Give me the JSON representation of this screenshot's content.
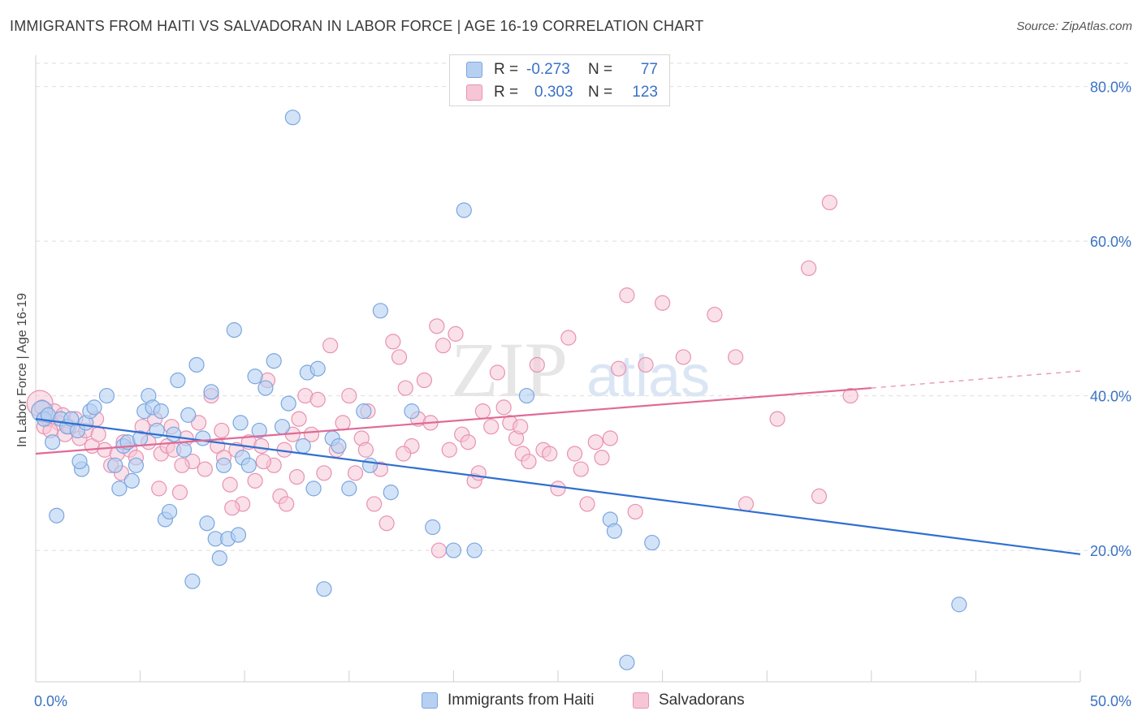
{
  "header": {
    "title": "IMMIGRANTS FROM HAITI VS SALVADORAN IN LABOR FORCE | AGE 16-19 CORRELATION CHART",
    "source": "Source: ZipAtlas.com"
  },
  "legend_top": {
    "rows": [
      {
        "r_label": "R =",
        "r_value": "-0.273",
        "n_label": "N =",
        "n_value": "77"
      },
      {
        "r_label": "R =",
        "r_value": "0.303",
        "n_label": "N =",
        "n_value": "123"
      }
    ]
  },
  "legend_bottom": {
    "items": [
      "Immigrants from Haiti",
      "Salvadorans"
    ]
  },
  "watermark": {
    "zip": "ZIP",
    "atlas": "atlas"
  },
  "colors": {
    "haiti_fill": "#b6d0f2",
    "haiti_stroke": "#7aa6e0",
    "haiti_line": "#2f6fd0",
    "salv_fill": "#f6c6d6",
    "salv_stroke": "#e892b0",
    "salv_line": "#e06a96",
    "tick_label": "#3a72c4",
    "grid": "#dedede"
  },
  "chart_data": {
    "type": "scatter",
    "title": "IMMIGRANTS FROM HAITI VS SALVADORAN IN LABOR FORCE | AGE 16-19 CORRELATION CHART",
    "xlabel": "",
    "ylabel": "In Labor Force | Age 16-19",
    "xlim": [
      0,
      50
    ],
    "ylim": [
      3,
      83
    ],
    "x_tick_labels": [
      {
        "value": 0,
        "label": "0.0%"
      },
      {
        "value": 50,
        "label": "50.0%"
      }
    ],
    "y_tick_labels": [
      {
        "value": 20,
        "label": "20.0%"
      },
      {
        "value": 40,
        "label": "40.0%"
      },
      {
        "value": 60,
        "label": "60.0%"
      },
      {
        "value": 80,
        "label": "80.0%"
      }
    ],
    "grid": true,
    "series": [
      {
        "name": "Immigrants from Haiti",
        "R": -0.273,
        "N": 77,
        "trend": {
          "x0": 0,
          "y0": 37.0,
          "x1": 50,
          "y1": 19.5
        },
        "points": [
          [
            0.3,
            38
          ],
          [
            0.4,
            37
          ],
          [
            0.6,
            37.5
          ],
          [
            0.8,
            34
          ],
          [
            1.0,
            24.5
          ],
          [
            1.2,
            37
          ],
          [
            1.5,
            36
          ],
          [
            1.7,
            37
          ],
          [
            2.0,
            35.5
          ],
          [
            2.2,
            30.5
          ],
          [
            2.4,
            36.5
          ],
          [
            2.6,
            38
          ],
          [
            2.8,
            38.5
          ],
          [
            3.4,
            40
          ],
          [
            3.8,
            31
          ],
          [
            4.0,
            28
          ],
          [
            4.2,
            33.5
          ],
          [
            4.4,
            34
          ],
          [
            4.6,
            29
          ],
          [
            4.8,
            31
          ],
          [
            5.2,
            38
          ],
          [
            5.4,
            40
          ],
          [
            5.6,
            38.5
          ],
          [
            5.8,
            35.5
          ],
          [
            6.0,
            38
          ],
          [
            6.2,
            24
          ],
          [
            6.4,
            25
          ],
          [
            6.6,
            35
          ],
          [
            6.8,
            42
          ],
          [
            7.1,
            33
          ],
          [
            7.3,
            37.5
          ],
          [
            7.5,
            16
          ],
          [
            7.7,
            44
          ],
          [
            8.0,
            34.5
          ],
          [
            8.2,
            23.5
          ],
          [
            8.4,
            40.5
          ],
          [
            8.6,
            21.5
          ],
          [
            8.8,
            19
          ],
          [
            9.0,
            31
          ],
          [
            9.2,
            21.5
          ],
          [
            9.5,
            48.5
          ],
          [
            9.7,
            22
          ],
          [
            9.9,
            32
          ],
          [
            10.2,
            31
          ],
          [
            10.5,
            42.5
          ],
          [
            10.7,
            35.5
          ],
          [
            11.0,
            41
          ],
          [
            11.4,
            44.5
          ],
          [
            11.8,
            36
          ],
          [
            12.1,
            39
          ],
          [
            12.3,
            76
          ],
          [
            12.8,
            33.5
          ],
          [
            13.0,
            43
          ],
          [
            13.3,
            28
          ],
          [
            13.5,
            43.5
          ],
          [
            13.8,
            15
          ],
          [
            14.2,
            34.5
          ],
          [
            14.5,
            33.5
          ],
          [
            15.0,
            28
          ],
          [
            15.7,
            38
          ],
          [
            16.0,
            31
          ],
          [
            16.5,
            51
          ],
          [
            17.0,
            27.5
          ],
          [
            18.0,
            38
          ],
          [
            19.0,
            23
          ],
          [
            20.0,
            20
          ],
          [
            20.5,
            64
          ],
          [
            21.0,
            20
          ],
          [
            23.5,
            40
          ],
          [
            27.5,
            24
          ],
          [
            27.7,
            22.5
          ],
          [
            29.5,
            21
          ],
          [
            28.3,
            5.5
          ],
          [
            44.2,
            13
          ],
          [
            2.1,
            31.5
          ],
          [
            5.0,
            34.5
          ],
          [
            9.8,
            36.5
          ]
        ]
      },
      {
        "name": "Salvadorans",
        "R": 0.303,
        "N": 123,
        "trend": {
          "x0": 0,
          "y0": 32.5,
          "x1": 40,
          "y1": 41.0
        },
        "trend_dashed": {
          "x0": 40,
          "y0": 41.0,
          "x1": 50,
          "y1": 43.2
        },
        "points": [
          [
            0.2,
            39
          ],
          [
            0.4,
            36
          ],
          [
            0.6,
            37
          ],
          [
            0.9,
            38
          ],
          [
            1.1,
            36.5
          ],
          [
            1.4,
            35
          ],
          [
            1.6,
            36
          ],
          [
            1.9,
            37
          ],
          [
            2.1,
            34.5
          ],
          [
            2.4,
            35.5
          ],
          [
            2.7,
            33.5
          ],
          [
            3.0,
            35
          ],
          [
            3.3,
            33
          ],
          [
            3.6,
            31
          ],
          [
            3.9,
            32.5
          ],
          [
            4.2,
            34
          ],
          [
            4.5,
            33
          ],
          [
            4.8,
            32
          ],
          [
            5.1,
            36
          ],
          [
            5.4,
            34
          ],
          [
            5.7,
            37
          ],
          [
            6.0,
            32.5
          ],
          [
            6.3,
            33.5
          ],
          [
            6.6,
            33
          ],
          [
            6.9,
            27.5
          ],
          [
            7.2,
            34.5
          ],
          [
            7.5,
            31.5
          ],
          [
            7.8,
            36.5
          ],
          [
            8.1,
            30.5
          ],
          [
            8.4,
            40
          ],
          [
            8.7,
            33.5
          ],
          [
            9.0,
            32
          ],
          [
            9.3,
            28.5
          ],
          [
            9.6,
            33
          ],
          [
            9.9,
            26
          ],
          [
            10.2,
            34
          ],
          [
            10.5,
            29
          ],
          [
            10.8,
            33.5
          ],
          [
            11.1,
            42
          ],
          [
            11.4,
            31
          ],
          [
            11.7,
            27
          ],
          [
            12.0,
            26
          ],
          [
            12.3,
            35
          ],
          [
            12.6,
            37
          ],
          [
            12.9,
            40
          ],
          [
            13.2,
            35
          ],
          [
            13.5,
            39.5
          ],
          [
            13.8,
            30
          ],
          [
            14.1,
            46.5
          ],
          [
            14.4,
            33
          ],
          [
            14.7,
            36.5
          ],
          [
            15.0,
            40
          ],
          [
            15.3,
            30
          ],
          [
            15.6,
            34.5
          ],
          [
            15.9,
            38
          ],
          [
            16.2,
            26
          ],
          [
            16.5,
            30.5
          ],
          [
            16.8,
            23.5
          ],
          [
            17.1,
            47
          ],
          [
            17.4,
            45
          ],
          [
            17.7,
            41
          ],
          [
            18.0,
            33.5
          ],
          [
            18.3,
            37
          ],
          [
            18.6,
            42
          ],
          [
            18.9,
            36.5
          ],
          [
            19.2,
            49
          ],
          [
            19.5,
            46.5
          ],
          [
            19.8,
            33
          ],
          [
            20.1,
            48
          ],
          [
            20.4,
            35
          ],
          [
            20.7,
            34
          ],
          [
            21.0,
            29
          ],
          [
            21.4,
            38
          ],
          [
            21.8,
            36
          ],
          [
            22.1,
            43
          ],
          [
            22.4,
            38.5
          ],
          [
            22.7,
            36.5
          ],
          [
            23.0,
            34.5
          ],
          [
            23.3,
            32.5
          ],
          [
            23.6,
            31.5
          ],
          [
            24.0,
            44
          ],
          [
            24.3,
            33
          ],
          [
            24.6,
            32.5
          ],
          [
            25.0,
            28
          ],
          [
            25.5,
            47.5
          ],
          [
            25.8,
            32.5
          ],
          [
            26.1,
            30.5
          ],
          [
            26.4,
            26
          ],
          [
            26.8,
            34
          ],
          [
            27.1,
            32
          ],
          [
            27.5,
            34.5
          ],
          [
            27.9,
            43.5
          ],
          [
            28.3,
            53
          ],
          [
            28.7,
            25
          ],
          [
            29.2,
            44
          ],
          [
            30.0,
            52
          ],
          [
            31.0,
            45
          ],
          [
            32.5,
            50.5
          ],
          [
            33.5,
            45
          ],
          [
            34.0,
            26
          ],
          [
            35.5,
            37
          ],
          [
            37.0,
            56.5
          ],
          [
            37.5,
            27
          ],
          [
            38.0,
            65
          ],
          [
            39.0,
            40
          ],
          [
            0.3,
            38.5
          ],
          [
            0.7,
            35.5
          ],
          [
            1.3,
            37.5
          ],
          [
            2.9,
            37
          ],
          [
            4.1,
            30
          ],
          [
            5.9,
            28
          ],
          [
            7.0,
            31
          ],
          [
            8.9,
            35.5
          ],
          [
            10.9,
            31.5
          ],
          [
            12.5,
            29.5
          ],
          [
            15.8,
            33
          ],
          [
            17.6,
            32.5
          ],
          [
            19.3,
            20
          ],
          [
            21.2,
            30
          ],
          [
            23.2,
            36
          ],
          [
            6.5,
            36
          ],
          [
            9.4,
            25.5
          ],
          [
            11.9,
            33
          ]
        ]
      }
    ]
  }
}
